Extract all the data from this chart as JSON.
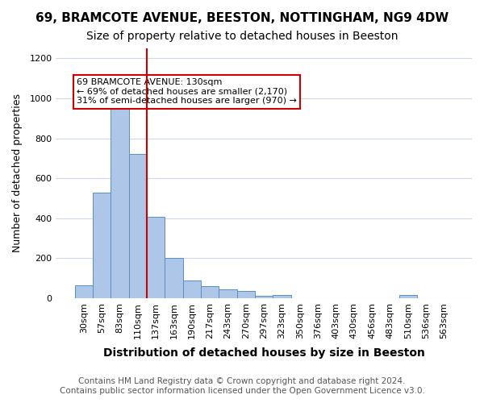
{
  "title1": "69, BRAMCOTE AVENUE, BEESTON, NOTTINGHAM, NG9 4DW",
  "title2": "Size of property relative to detached houses in Beeston",
  "xlabel": "Distribution of detached houses by size in Beeston",
  "ylabel": "Number of detached properties",
  "categories": [
    "30sqm",
    "57sqm",
    "83sqm",
    "110sqm",
    "137sqm",
    "163sqm",
    "190sqm",
    "217sqm",
    "243sqm",
    "270sqm",
    "297sqm",
    "323sqm",
    "350sqm",
    "376sqm",
    "403sqm",
    "430sqm",
    "456sqm",
    "483sqm",
    "510sqm",
    "536sqm",
    "563sqm"
  ],
  "values": [
    65,
    530,
    1000,
    720,
    405,
    200,
    90,
    60,
    45,
    35,
    10,
    15,
    0,
    0,
    0,
    0,
    0,
    0,
    15,
    0,
    0
  ],
  "bar_color": "#aec6e8",
  "bar_edge_color": "#5a8fc0",
  "red_line_x": 4,
  "red_line_color": "#cc0000",
  "annotation_text": "69 BRAMCOTE AVENUE: 130sqm\n← 69% of detached houses are smaller (2,170)\n31% of semi-detached houses are larger (970) →",
  "annotation_box_edge": "#cc0000",
  "annotation_box_face": "#ffffff",
  "ylim": [
    0,
    1250
  ],
  "yticks": [
    0,
    200,
    400,
    600,
    800,
    1000,
    1200
  ],
  "footer1": "Contains HM Land Registry data © Crown copyright and database right 2024.",
  "footer2": "Contains public sector information licensed under the Open Government Licence v3.0.",
  "bg_color": "#ffffff",
  "grid_color": "#d0d8e8",
  "title1_fontsize": 11,
  "title2_fontsize": 10,
  "xlabel_fontsize": 10,
  "ylabel_fontsize": 9,
  "tick_fontsize": 8,
  "footer_fontsize": 7.5
}
